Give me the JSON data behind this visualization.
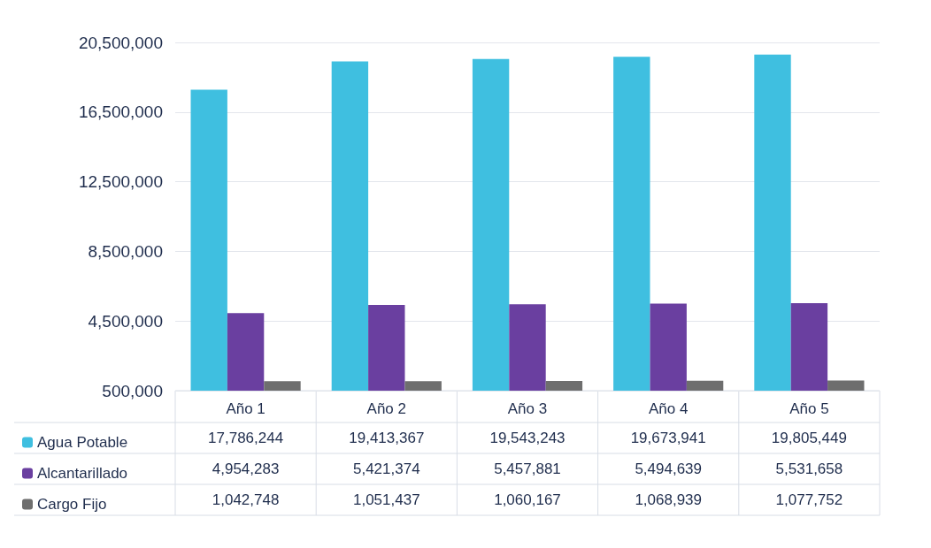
{
  "chart_data": {
    "type": "bar",
    "categories": [
      "Año 1",
      "Año 2",
      "Año 3",
      "Año 4",
      "Año 5"
    ],
    "series": [
      {
        "name": "Agua Potable",
        "color": "#3fbfe0",
        "values": [
          17786244,
          19413367,
          19543243,
          19673941,
          19805449
        ],
        "value_labels": [
          "17,786,244",
          "19,413,367",
          "19,543,243",
          "19,673,941",
          "19,805,449"
        ]
      },
      {
        "name": "Alcantarillado",
        "color": "#6a3fa0",
        "values": [
          4954283,
          5421374,
          5457881,
          5494639,
          5531658
        ],
        "value_labels": [
          "4,954,283",
          "5,421,374",
          "5,457,881",
          "5,494,639",
          "5,531,658"
        ]
      },
      {
        "name": "Cargo Fijo",
        "color": "#6e6e6e",
        "values": [
          1042748,
          1051437,
          1060167,
          1068939,
          1077752
        ],
        "value_labels": [
          "1,042,748",
          "1,051,437",
          "1,060,167",
          "1,068,939",
          "1,077,752"
        ]
      }
    ],
    "ylim": [
      500000,
      20500000
    ],
    "yticks": [
      {
        "value": 500000,
        "label": "500,000"
      },
      {
        "value": 4500000,
        "label": "4,500,000"
      },
      {
        "value": 8500000,
        "label": "8,500,000"
      },
      {
        "value": 12500000,
        "label": "12,500,000"
      },
      {
        "value": 16500000,
        "label": "16,500,000"
      },
      {
        "value": 20500000,
        "label": "20,500,000"
      }
    ],
    "grid": "y",
    "legend": "bottom left"
  }
}
